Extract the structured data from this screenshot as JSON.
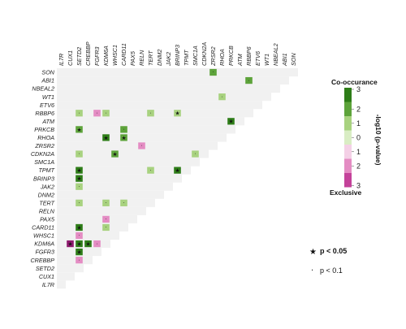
{
  "chart_data": {
    "type": "heatmap",
    "title": "",
    "genes_top": [
      "IL7R",
      "CUX1",
      "SETD2",
      "CREBBP",
      "FGFR3",
      "KDM6A",
      "WHSC1",
      "CARD11",
      "PAX5",
      "RELN",
      "TERT",
      "DNM2",
      "JAK2",
      "BRINP3",
      "TPMT",
      "SMC1A",
      "CDKN2A",
      "ZRSR2",
      "RHOA",
      "PRKCB",
      "ATM",
      "RBBP6",
      "ETV6",
      "WT1",
      "NBEAL2",
      "ABI1",
      "SON"
    ],
    "genes_left": [
      "SON",
      "ABI1",
      "NBEAL2",
      "WT1",
      "ETV6",
      "RBBP6",
      "ATM",
      "PRKCB",
      "RHOA",
      "ZRSR2",
      "CDKN2A",
      "SMC1A",
      "TPMT",
      "BRINP3",
      "JAK2",
      "DNM2",
      "TERT",
      "RELN",
      "PAX5",
      "CARD11",
      "WHSC1",
      "KDM6A",
      "FGFR3",
      "CREBBP",
      "SETD2",
      "CUX1",
      "IL7R"
    ],
    "value_label": "-log10 (p-value)",
    "legend_top_label": "Co-occurance",
    "legend_bottom_label": "Exclusive",
    "legend_ticks": [
      "3",
      "2",
      "1",
      "0",
      "1",
      "2",
      "3"
    ],
    "scale_colors": [
      "#2e7d18",
      "#5da33a",
      "#a8d27f",
      "#d9edc4",
      "#f3f3f3",
      "#f4d0e6",
      "#e48cc3",
      "#c4429a",
      "#8e1a6e"
    ],
    "background_color": "#f1f1f1",
    "significance": [
      {
        "symbol": "★",
        "label": "p < 0.05"
      },
      {
        "symbol": "·",
        "label": "p < 0.1"
      }
    ],
    "cells": [
      {
        "row": "SON",
        "col": "ZRSR2",
        "value": 2.0,
        "mark": "dot"
      },
      {
        "row": "ABI1",
        "col": "RBBP6",
        "value": 2.0,
        "mark": "dot"
      },
      {
        "row": "WT1",
        "col": "RHOA",
        "value": 1.5,
        "mark": "dot"
      },
      {
        "row": "RBBP6",
        "col": "SETD2",
        "value": 1.3,
        "mark": "dot"
      },
      {
        "row": "RBBP6",
        "col": "FGFR3",
        "value": -1.3,
        "mark": "dot"
      },
      {
        "row": "RBBP6",
        "col": "KDM6A",
        "value": 1.5,
        "mark": "dot"
      },
      {
        "row": "RBBP6",
        "col": "TERT",
        "value": 1.2,
        "mark": "dot"
      },
      {
        "row": "RBBP6",
        "col": "BRINP3",
        "value": 1.6,
        "mark": "star"
      },
      {
        "row": "ATM",
        "col": "PRKCB",
        "value": 3.0,
        "mark": "star"
      },
      {
        "row": "PRKCB",
        "col": "SETD2",
        "value": 2.5,
        "mark": "star"
      },
      {
        "row": "PRKCB",
        "col": "CARD11",
        "value": 2.0,
        "mark": "dot"
      },
      {
        "row": "RHOA",
        "col": "KDM6A",
        "value": 3.0,
        "mark": "star"
      },
      {
        "row": "RHOA",
        "col": "CARD11",
        "value": 2.3,
        "mark": "star"
      },
      {
        "row": "ZRSR2",
        "col": "RELN",
        "value": -1.3,
        "mark": "dot"
      },
      {
        "row": "CDKN2A",
        "col": "SETD2",
        "value": 1.5,
        "mark": "dot"
      },
      {
        "row": "CDKN2A",
        "col": "WHSC1",
        "value": 2.0,
        "mark": "star"
      },
      {
        "row": "CDKN2A",
        "col": "SMC1A",
        "value": 1.2,
        "mark": "dot"
      },
      {
        "row": "TPMT",
        "col": "SETD2",
        "value": 3.0,
        "mark": "star"
      },
      {
        "row": "TPMT",
        "col": "TERT",
        "value": 1.2,
        "mark": "dot"
      },
      {
        "row": "TPMT",
        "col": "BRINP3",
        "value": 3.0,
        "mark": "star"
      },
      {
        "row": "BRINP3",
        "col": "SETD2",
        "value": 3.0,
        "mark": "star"
      },
      {
        "row": "JAK2",
        "col": "SETD2",
        "value": 1.0,
        "mark": "dot"
      },
      {
        "row": "TERT",
        "col": "SETD2",
        "value": 1.5,
        "mark": "dot"
      },
      {
        "row": "TERT",
        "col": "KDM6A",
        "value": 1.2,
        "mark": "dot"
      },
      {
        "row": "TERT",
        "col": "CARD11",
        "value": 1.2,
        "mark": "dot"
      },
      {
        "row": "PAX5",
        "col": "KDM6A",
        "value": -1.5,
        "mark": "dot"
      },
      {
        "row": "CARD11",
        "col": "SETD2",
        "value": 3.0,
        "mark": "star"
      },
      {
        "row": "CARD11",
        "col": "KDM6A",
        "value": 1.5,
        "mark": "dot"
      },
      {
        "row": "WHSC1",
        "col": "SETD2",
        "value": -1.5,
        "mark": "dot"
      },
      {
        "row": "KDM6A",
        "col": "CUX1",
        "value": -2.8,
        "mark": "star"
      },
      {
        "row": "KDM6A",
        "col": "SETD2",
        "value": 3.0,
        "mark": "star"
      },
      {
        "row": "KDM6A",
        "col": "CREBBP",
        "value": 3.0,
        "mark": "star"
      },
      {
        "row": "KDM6A",
        "col": "FGFR3",
        "value": -1.5,
        "mark": "dot"
      },
      {
        "row": "FGFR3",
        "col": "SETD2",
        "value": 3.0,
        "mark": "star"
      },
      {
        "row": "CREBBP",
        "col": "SETD2",
        "value": -1.5,
        "mark": "dot"
      }
    ]
  }
}
